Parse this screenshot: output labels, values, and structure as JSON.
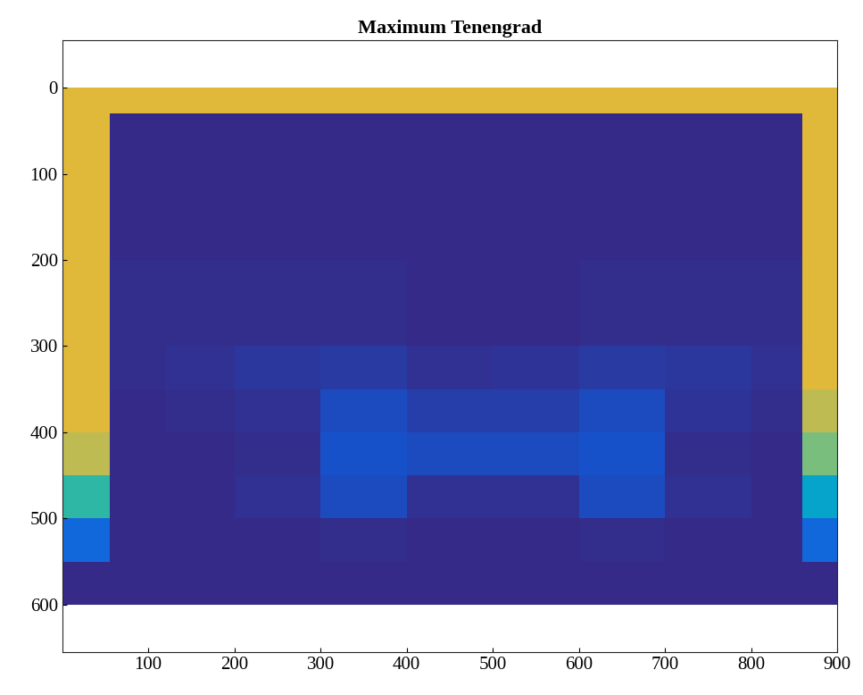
{
  "chart_data": {
    "type": "heatmap",
    "title": "Maximum Tenengrad",
    "x_edges": [
      0,
      55,
      120,
      200,
      300,
      400,
      500,
      600,
      700,
      800,
      860,
      900
    ],
    "y_edges": [
      0,
      30,
      100,
      200,
      300,
      350,
      400,
      450,
      500,
      550,
      600
    ],
    "cells": [
      [
        0.85,
        0.85,
        0.85,
        0.85,
        0.85,
        0.85,
        0.85,
        0.85,
        0.85,
        0.85,
        0.85
      ],
      [
        0.85,
        0,
        0,
        0,
        0,
        0,
        0,
        0,
        0,
        0,
        0.85
      ],
      [
        0.85,
        0,
        0,
        0,
        0,
        0,
        0,
        0,
        0,
        0,
        0.85
      ],
      [
        0.85,
        0.01,
        0.01,
        0.01,
        0.01,
        0,
        0,
        0.01,
        0.01,
        0.01,
        0.85
      ],
      [
        0.85,
        0.01,
        0.02,
        0.04,
        0.05,
        0.02,
        0.03,
        0.05,
        0.04,
        0.02,
        0.85
      ],
      [
        0.85,
        0,
        0.01,
        0.02,
        0.1,
        0.06,
        0.06,
        0.1,
        0.03,
        0.01,
        0.8
      ],
      [
        0.8,
        0,
        0,
        0.01,
        0.12,
        0.1,
        0.1,
        0.12,
        0.01,
        0,
        0.7
      ],
      [
        0.6,
        0,
        0,
        0.02,
        0.1,
        0.02,
        0.02,
        0.1,
        0.02,
        0,
        0.45
      ],
      [
        0.2,
        0,
        0,
        0,
        0.01,
        0,
        0,
        0.01,
        0,
        0,
        0.2
      ],
      [
        0,
        0,
        0,
        0,
        0,
        0,
        0,
        0,
        0,
        0,
        0
      ]
    ],
    "color_range": [
      0,
      1
    ],
    "xlim": [
      0,
      900
    ],
    "ylim": [
      655,
      -55
    ],
    "xticks": [
      100,
      200,
      300,
      400,
      500,
      600,
      700,
      800,
      900
    ],
    "yticks": [
      0,
      100,
      200,
      300,
      400,
      500,
      600
    ]
  }
}
